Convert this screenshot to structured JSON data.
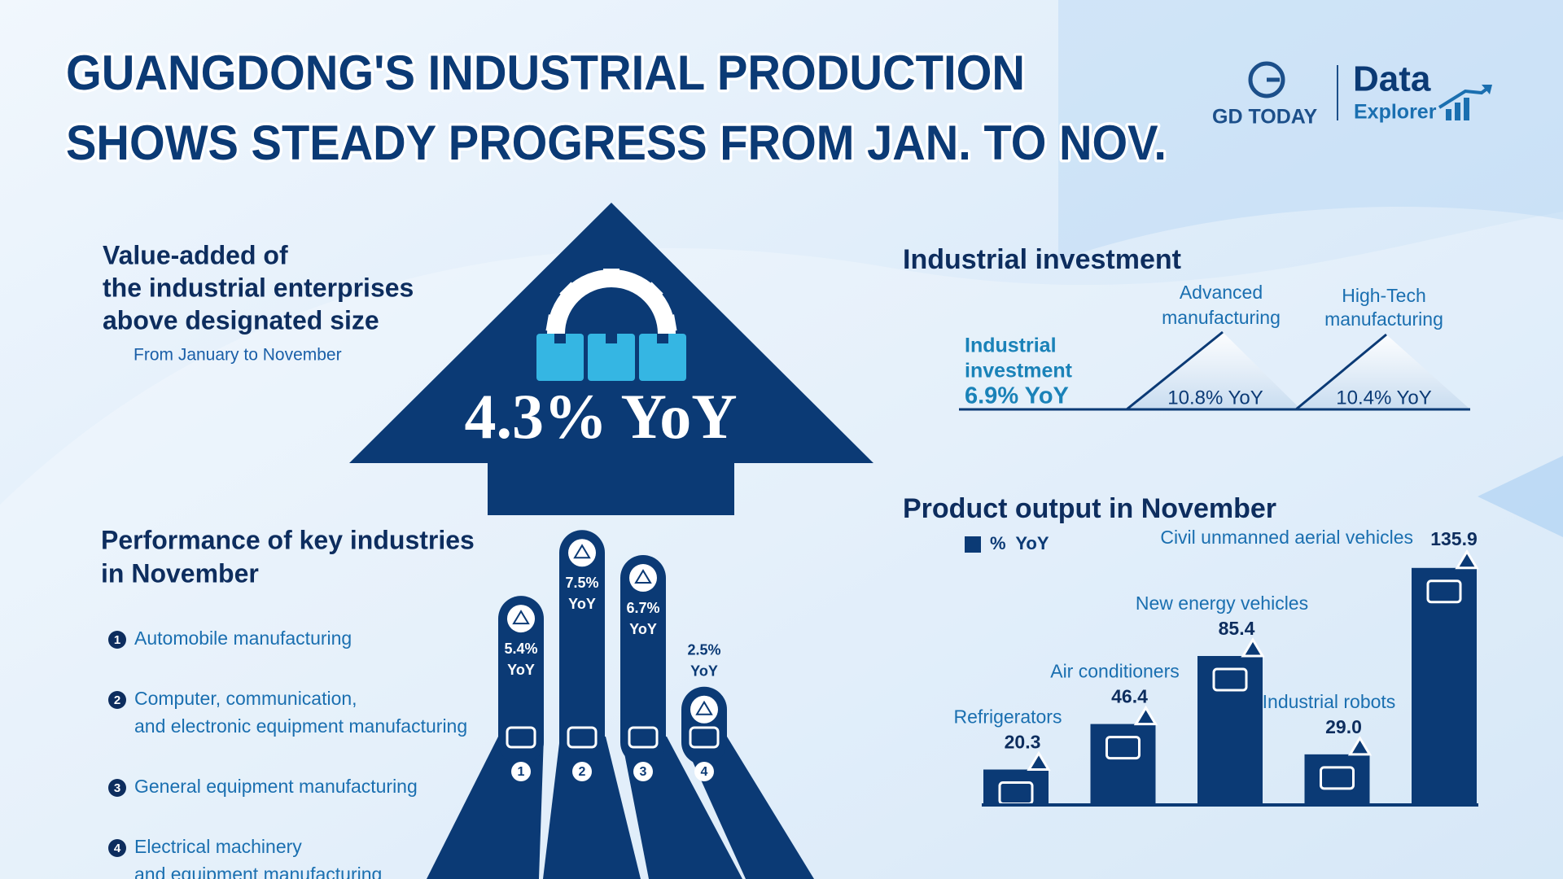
{
  "header": {
    "title": [
      "GUANGDONG'S INDUSTRIAL PRODUCTION",
      "SHOWS STEADY PROGRESS FROM JAN. TO NOV."
    ],
    "brand": "GD TODAY",
    "product": [
      "Data",
      "Explorer"
    ]
  },
  "value_added": {
    "title": [
      "Value-added of",
      "the industrial enterprises",
      "above designated size"
    ],
    "period": "From January to November",
    "growth": "4.3% YoY"
  },
  "industrial_investment": {
    "title": "Industrial investment",
    "overall": {
      "label": [
        "Industrial",
        "investment"
      ],
      "value": "6.9% YoY"
    },
    "segments": [
      {
        "label": [
          "Advanced",
          "manufacturing"
        ],
        "value": "10.8% YoY"
      },
      {
        "label": [
          "High-Tech",
          "manufacturing"
        ],
        "value": "10.4% YoY"
      }
    ]
  },
  "chart_data": [
    {
      "type": "bar",
      "title": [
        "Performance of key industries",
        "in November"
      ],
      "categories": [
        "1",
        "2",
        "3",
        "4"
      ],
      "descriptions": [
        [
          "Automobile manufacturing"
        ],
        [
          "Computer, communication,",
          "and electronic equipment manufacturing"
        ],
        [
          "General equipment manufacturing"
        ],
        [
          "Electrical machinery",
          "and equipment manufacturing"
        ]
      ],
      "values": [
        5.4,
        7.5,
        6.7,
        2.5
      ],
      "value_labels": [
        "5.4%",
        "7.5%",
        "6.7%",
        "2.5%"
      ],
      "value_unit": "YoY",
      "color": "#0b3a75",
      "ylim": [
        0,
        8
      ]
    },
    {
      "type": "bar",
      "title": "Product output in November",
      "categories": [
        "Refrigerators",
        "Air conditioners",
        "New energy vehicles",
        "Industrial robots",
        "Civil unmanned aerial vehicles"
      ],
      "series": [
        {
          "name": "%  YoY",
          "color": "#0b3a75",
          "values": [
            20.3,
            46.4,
            85.4,
            29.0,
            135.9
          ],
          "value_labels": [
            "20.3",
            "46.4",
            "85.4",
            "29.0",
            "135.9"
          ]
        }
      ],
      "ylim": [
        0,
        140
      ]
    }
  ]
}
